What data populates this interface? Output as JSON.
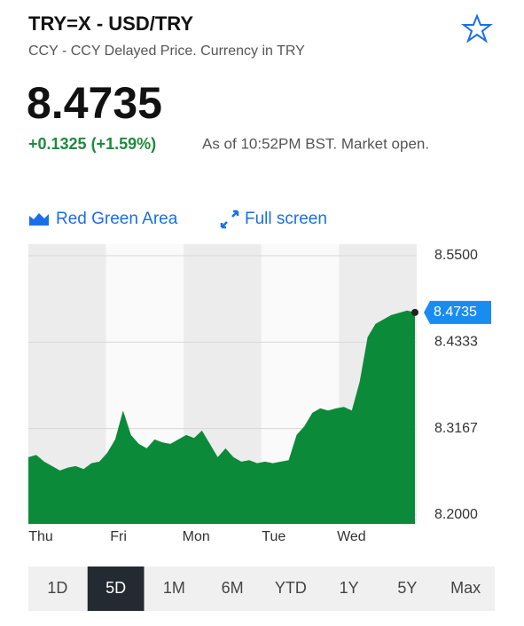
{
  "header": {
    "title": "TRY=X - USD/TRY",
    "subtitle": "CCY - CCY Delayed Price. Currency in TRY"
  },
  "quote": {
    "price": "8.4735",
    "change": "+0.1325 (+1.59%)",
    "as_of": "As of 10:52PM BST. Market open."
  },
  "toolbar": {
    "chart_type": "Red Green Area",
    "full_screen": "Full screen"
  },
  "chart_data": {
    "type": "area",
    "color": "#0b8a3a",
    "x_labels": [
      "Thu",
      "Fri",
      "Mon",
      "Tue",
      "Wed"
    ],
    "values": [
      8.278,
      8.281,
      8.272,
      8.266,
      8.26,
      8.264,
      8.266,
      8.262,
      8.27,
      8.272,
      8.284,
      8.302,
      8.341,
      8.308,
      8.296,
      8.29,
      8.302,
      8.298,
      8.296,
      8.302,
      8.308,
      8.304,
      8.314,
      8.296,
      8.278,
      8.29,
      8.278,
      8.272,
      8.274,
      8.27,
      8.272,
      8.27,
      8.272,
      8.274,
      8.308,
      8.32,
      8.338,
      8.344,
      8.341,
      8.344,
      8.346,
      8.341,
      8.38,
      8.44,
      8.458,
      8.464,
      8.47,
      8.473,
      8.476,
      8.4735
    ],
    "ylim": [
      8.2,
      8.55
    ],
    "yticks": [
      {
        "value": 8.2,
        "label": "8.2000"
      },
      {
        "value": 8.3167,
        "label": "8.3167"
      },
      {
        "value": 8.4333,
        "label": "8.4333"
      },
      {
        "value": 8.55,
        "label": "8.5500"
      }
    ],
    "grid": true
  },
  "range_buttons": [
    "1D",
    "5D",
    "1M",
    "6M",
    "YTD",
    "1Y",
    "5Y",
    "Max"
  ],
  "selected_range_index": 1
}
